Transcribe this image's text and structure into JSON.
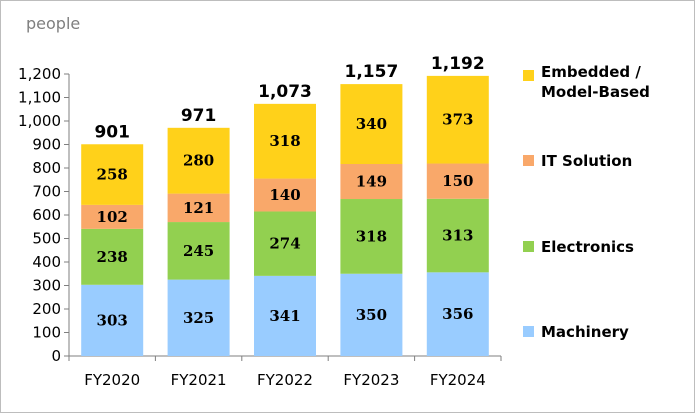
{
  "chart_data": {
    "type": "bar",
    "stacked": true,
    "unit_label": "people",
    "categories": [
      "FY2020",
      "FY2021",
      "FY2022",
      "FY2023",
      "FY2024"
    ],
    "series": [
      {
        "name": "Machinery",
        "color": "#99ccff",
        "values": [
          303,
          325,
          341,
          350,
          356
        ]
      },
      {
        "name": "Electronics",
        "color": "#92d050",
        "values": [
          238,
          245,
          274,
          318,
          313
        ]
      },
      {
        "name": "IT Solution",
        "color": "#f9a86a",
        "values": [
          102,
          121,
          140,
          149,
          150
        ]
      },
      {
        "name": "Embedded / Model-Based",
        "color": "#ffd11a",
        "values": [
          258,
          280,
          318,
          340,
          373
        ]
      }
    ],
    "totals": [
      "901",
      "971",
      "1,073",
      "1,157",
      "1,192"
    ],
    "ylim": [
      0,
      1200
    ],
    "yticks": [
      "0",
      "100",
      "200",
      "300",
      "400",
      "500",
      "600",
      "700",
      "800",
      "900",
      "1,000",
      "1,100",
      "1,200"
    ],
    "legend_position": "right",
    "grid": false
  }
}
